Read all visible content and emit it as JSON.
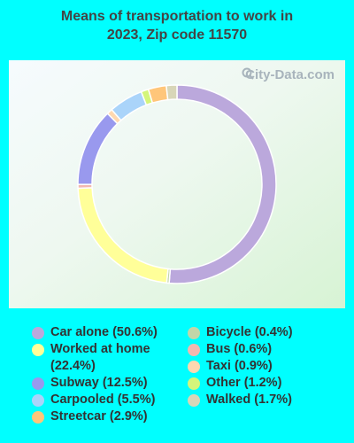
{
  "title_lines": [
    "Means of transportation to work in",
    "2023, Zip code 11570"
  ],
  "watermark": "City-Data.com",
  "chart_data": {
    "type": "pie",
    "variant": "donut",
    "title": "Means of transportation to work in 2023, Zip code 11570",
    "series": [
      {
        "name": "Car alone",
        "value": 50.6,
        "legend_label": "Car alone (50.6%)",
        "color": "#bba8dc"
      },
      {
        "name": "Bicycle",
        "value": 0.4,
        "legend_label": "Bicycle (0.4%)",
        "color": "#c2d6a8"
      },
      {
        "name": "Worked at home",
        "value": 22.4,
        "legend_label": "Worked at home (22.4%)",
        "color": "#ffff99"
      },
      {
        "name": "Bus",
        "value": 0.6,
        "legend_label": "Bus (0.6%)",
        "color": "#f2b8b0"
      },
      {
        "name": "Subway",
        "value": 12.5,
        "legend_label": "Subway (12.5%)",
        "color": "#9999ee"
      },
      {
        "name": "Taxi",
        "value": 0.9,
        "legend_label": "Taxi (0.9%)",
        "color": "#ffd8b0"
      },
      {
        "name": "Carpooled",
        "value": 5.5,
        "legend_label": "Carpooled (5.5%)",
        "color": "#aad4fa"
      },
      {
        "name": "Other",
        "value": 1.2,
        "legend_label": "Other (1.2%)",
        "color": "#d4f57a"
      },
      {
        "name": "Streetcar",
        "value": 2.9,
        "legend_label": "Streetcar (2.9%)",
        "color": "#ffc67a"
      },
      {
        "name": "Walked",
        "value": 1.7,
        "legend_label": "Walked (1.7%)",
        "color": "#d8d6b8"
      }
    ],
    "legend_placement": "bottom"
  },
  "legend": {
    "left": [
      {
        "text": "Car alone (50.6%)",
        "color": "#bba8dc"
      },
      {
        "text": "Worked at home (22.4%)",
        "color": "#ffff99"
      },
      {
        "text": "Subway (12.5%)",
        "color": "#9999ee"
      },
      {
        "text": "Carpooled (5.5%)",
        "color": "#aad4fa"
      },
      {
        "text": "Streetcar (2.9%)",
        "color": "#ffc67a"
      }
    ],
    "right": [
      {
        "text": "Bicycle (0.4%)",
        "color": "#c2d6a8"
      },
      {
        "text": "Bus (0.6%)",
        "color": "#f2b8b0"
      },
      {
        "text": "Taxi (0.9%)",
        "color": "#ffd8b0"
      },
      {
        "text": "Other (1.2%)",
        "color": "#d4f57a"
      },
      {
        "text": "Walked (1.7%)",
        "color": "#d8d6b8"
      }
    ]
  }
}
